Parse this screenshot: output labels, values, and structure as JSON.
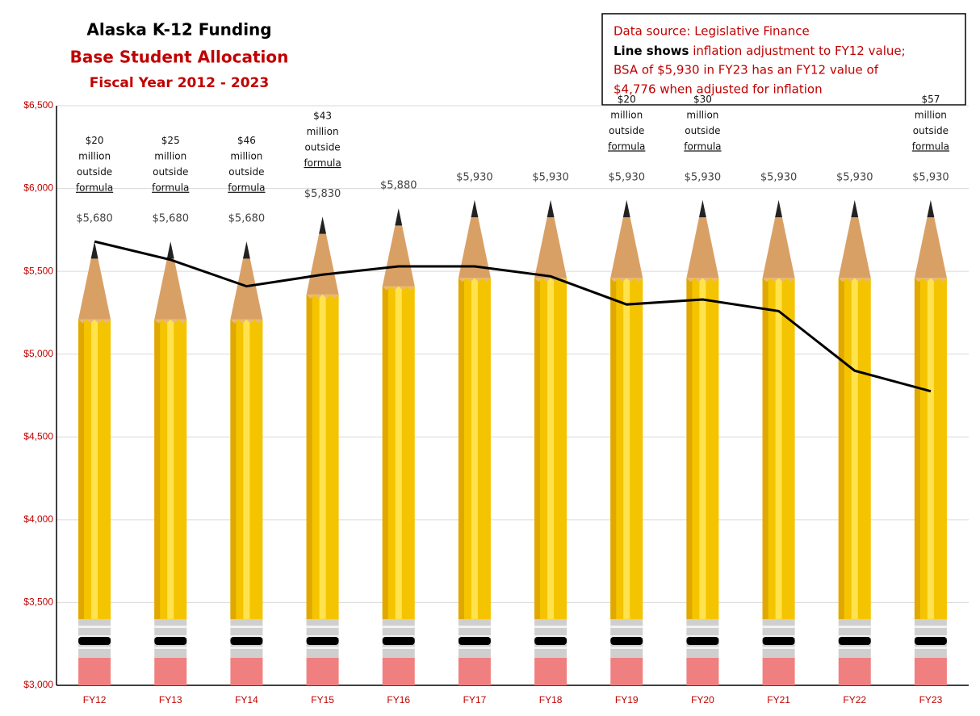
{
  "chart_data": {
    "type": "bar",
    "title": "Alaska K-12 Funding",
    "subtitle": "Base Student Allocation",
    "period": "Fiscal Year 2012 - 2023",
    "note": {
      "source": "Data source: Legislative Finance",
      "line_key": "Line shows",
      "line_text": " inflation adjustment to FY12 value;",
      "detail_1": "BSA of $5,930 in FY23 has an FY12 value of",
      "detail_2": "$4,776 when adjusted for inflation"
    },
    "categories": [
      "FY12",
      "FY13",
      "FY14",
      "FY15",
      "FY16",
      "FY17",
      "FY18",
      "FY19",
      "FY20",
      "FY21",
      "FY22",
      "FY23"
    ],
    "values": [
      5680,
      5680,
      5680,
      5830,
      5880,
      5930,
      5930,
      5930,
      5930,
      5930,
      5930,
      5930
    ],
    "value_labels": [
      "$5,680",
      "$5,680",
      "$5,680",
      "$5,830",
      "$5,880",
      "$5,930",
      "$5,930",
      "$5,930",
      "$5,930",
      "$5,930",
      "$5,930",
      "$5,930"
    ],
    "color": "#f5c400",
    "line_values": [
      5680,
      5570,
      5410,
      5480,
      5530,
      5530,
      5470,
      5300,
      5330,
      5260,
      4900,
      4776
    ],
    "line_color": "#000000",
    "outside_formula": [
      "$20",
      "$25",
      "$46",
      "$43",
      null,
      null,
      null,
      "$20",
      "$30",
      null,
      null,
      "$57"
    ],
    "outside_formula_words": [
      "million",
      "outside",
      "formula"
    ],
    "ylim": [
      3000,
      6500
    ],
    "yticks": [
      {
        "value": 3000,
        "label": "$3,000"
      },
      {
        "value": 3500,
        "label": "$3,500"
      },
      {
        "value": 4000,
        "label": "$4,000"
      },
      {
        "value": 4500,
        "label": "$4,500"
      },
      {
        "value": 5000,
        "label": "$5,000"
      },
      {
        "value": 5500,
        "label": "$5,500"
      },
      {
        "value": 6000,
        "label": "$6,000"
      },
      {
        "value": 6500,
        "label": "$6,500"
      }
    ],
    "grid": true
  }
}
